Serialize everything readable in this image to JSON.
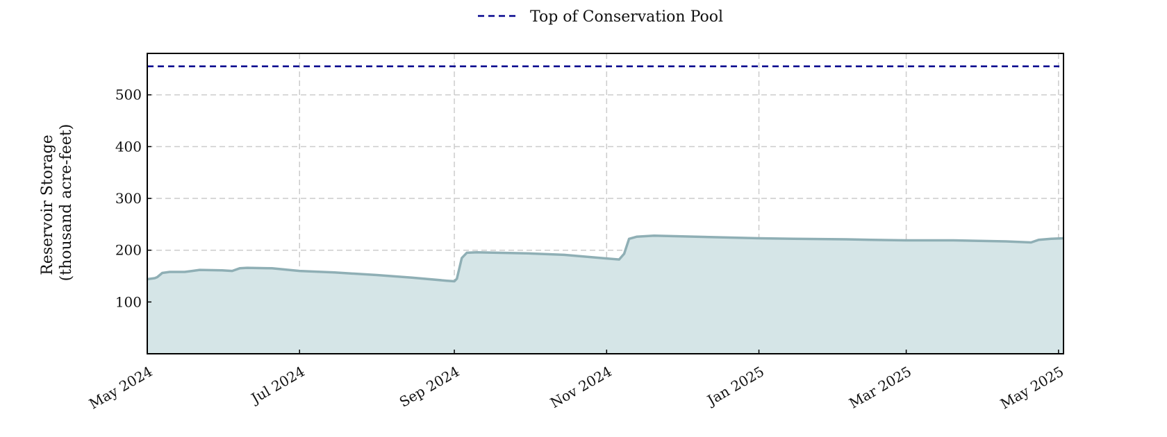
{
  "chart_data": {
    "type": "area",
    "ylabel_line1": "Reservoir Storage",
    "ylabel_line2": "(thousand acre-feet)",
    "xlabel": "",
    "ylim": [
      0,
      580
    ],
    "xlim": [
      "2024-05-01",
      "2025-05-03"
    ],
    "y_ticks": [
      100,
      200,
      300,
      400,
      500
    ],
    "x_ticks": [
      {
        "date": "2024-05-01",
        "label": "May 2024"
      },
      {
        "date": "2024-07-01",
        "label": "Jul 2024"
      },
      {
        "date": "2024-09-01",
        "label": "Sep 2024"
      },
      {
        "date": "2024-11-01",
        "label": "Nov 2024"
      },
      {
        "date": "2025-01-01",
        "label": "Jan 2025"
      },
      {
        "date": "2025-03-01",
        "label": "Mar 2025"
      },
      {
        "date": "2025-05-01",
        "label": "May 2025"
      }
    ],
    "grid": true,
    "legend_position": "top-center",
    "reference_line": {
      "name": "Top of Conservation Pool",
      "value": 555,
      "color": "#00008b"
    },
    "series": [
      {
        "color": "#8fafb5",
        "fill": "#d5e5e7",
        "points": [
          [
            "2024-05-01",
            144
          ],
          [
            "2024-05-04",
            146
          ],
          [
            "2024-05-05",
            148
          ],
          [
            "2024-05-07",
            156
          ],
          [
            "2024-05-10",
            158
          ],
          [
            "2024-05-16",
            158
          ],
          [
            "2024-05-19",
            160
          ],
          [
            "2024-05-22",
            162
          ],
          [
            "2024-05-31",
            161
          ],
          [
            "2024-06-04",
            160
          ],
          [
            "2024-06-07",
            165
          ],
          [
            "2024-06-10",
            166
          ],
          [
            "2024-06-20",
            165
          ],
          [
            "2024-07-01",
            160
          ],
          [
            "2024-07-15",
            157
          ],
          [
            "2024-08-01",
            152
          ],
          [
            "2024-08-15",
            147
          ],
          [
            "2024-08-29",
            141
          ],
          [
            "2024-09-01",
            140
          ],
          [
            "2024-09-02",
            145
          ],
          [
            "2024-09-04",
            185
          ],
          [
            "2024-09-06",
            195
          ],
          [
            "2024-09-10",
            196
          ],
          [
            "2024-09-30",
            194
          ],
          [
            "2024-10-15",
            191
          ],
          [
            "2024-11-01",
            184
          ],
          [
            "2024-11-06",
            182
          ],
          [
            "2024-11-08",
            193
          ],
          [
            "2024-11-10",
            222
          ],
          [
            "2024-11-13",
            226
          ],
          [
            "2024-11-20",
            228
          ],
          [
            "2024-12-15",
            225
          ],
          [
            "2025-01-01",
            223
          ],
          [
            "2025-01-15",
            222
          ],
          [
            "2025-02-05",
            221
          ],
          [
            "2025-02-15",
            220
          ],
          [
            "2025-03-01",
            219
          ],
          [
            "2025-03-20",
            219
          ],
          [
            "2025-04-10",
            217
          ],
          [
            "2025-04-20",
            215
          ],
          [
            "2025-04-23",
            220
          ],
          [
            "2025-04-28",
            222
          ],
          [
            "2025-05-03",
            223
          ]
        ]
      }
    ]
  }
}
